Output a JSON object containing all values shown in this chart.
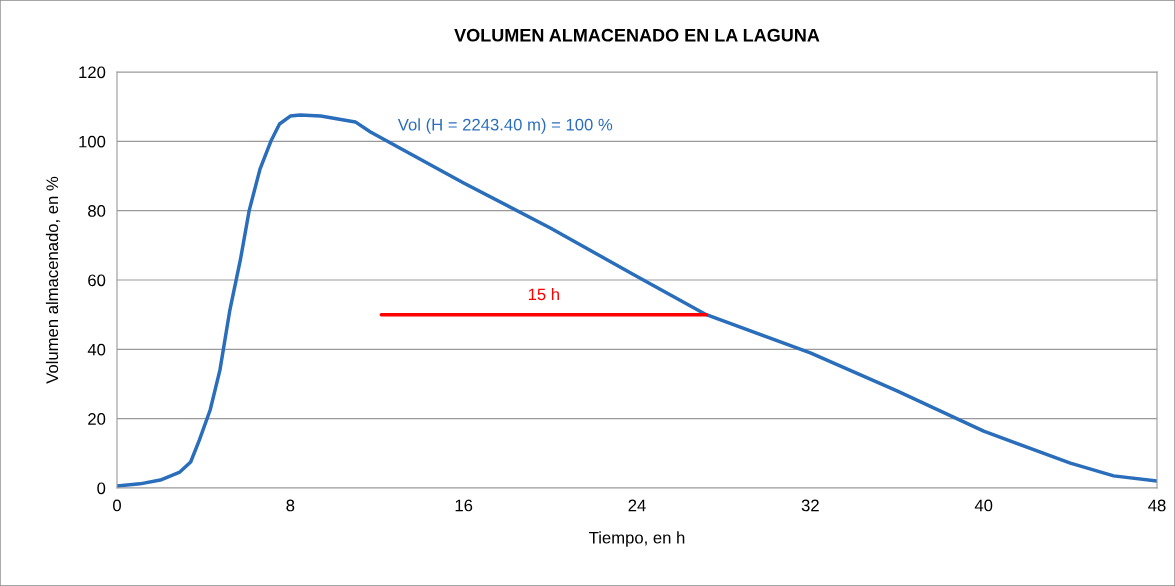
{
  "chart_data": {
    "type": "line",
    "title": "VOLUMEN ALMACENADO EN LA LAGUNA",
    "xlabel": "Tiempo, en h",
    "ylabel": "Volumen almacenado, en %",
    "xlim": [
      0,
      48
    ],
    "xticks": [
      0,
      8,
      16,
      24,
      32,
      40,
      48
    ],
    "ylim": [
      0,
      120
    ],
    "yticks": [
      0,
      20,
      40,
      60,
      80,
      100,
      120
    ],
    "grid": "y",
    "legend": false,
    "line_style": "solid",
    "series": [
      {
        "color": "#2a6ebb",
        "x": [
          0,
          1.06,
          2.0,
          2.9,
          3.4,
          3.8,
          4.3,
          4.75,
          5.2,
          5.7,
          6.1,
          6.6,
          7.1,
          7.5,
          8.0,
          8.45,
          9.4,
          11.0,
          11.7,
          16,
          20,
          24,
          27.2,
          32,
          36,
          40,
          44,
          46,
          48
        ],
        "values": [
          0.6,
          1.2,
          2.3,
          4.6,
          7.5,
          13.8,
          22.5,
          34,
          51,
          66,
          80,
          92,
          100,
          105,
          107.3,
          107.6,
          107.3,
          105.6,
          102.7,
          88,
          75,
          61,
          50,
          39,
          28,
          16.4,
          7.2,
          3.5,
          2.0
        ]
      },
      {
        "color": "#ff0000",
        "x": [
          12.2,
          27.2
        ],
        "values": [
          50,
          50
        ]
      }
    ],
    "annotations": [
      "Vol (H = 2243.40 m) = 100 %",
      {
        "text": "15 h",
        "x": 19.7,
        "y": 50
      }
    ]
  }
}
